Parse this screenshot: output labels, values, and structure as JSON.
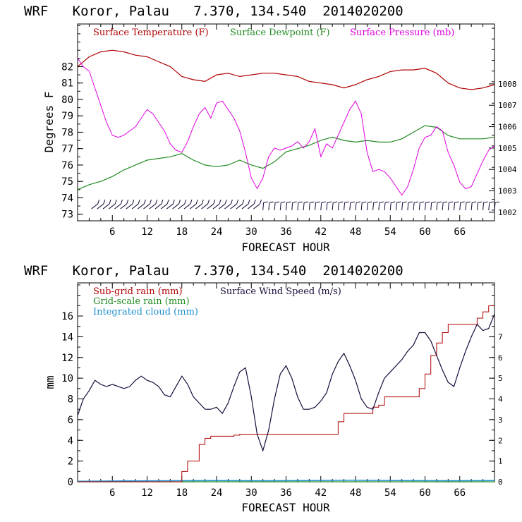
{
  "chart_data": [
    {
      "type": "line",
      "title": "WRF   Koror, Palau   7.370, 134.540  2014020200",
      "xlabel": "FORECAST HOUR",
      "ylabel": "Degrees F",
      "xlim": [
        0,
        72
      ],
      "ylim": [
        72.6,
        84.6
      ],
      "y2lim": [
        1001.6,
        1010.8
      ],
      "x_ticks": [
        6,
        12,
        18,
        24,
        30,
        36,
        42,
        48,
        54,
        60,
        66
      ],
      "y_ticks": [
        73,
        74,
        75,
        76,
        77,
        78,
        79,
        80,
        81,
        82
      ],
      "y2_ticks": [
        1002,
        1003,
        1004,
        1005,
        1006,
        1007,
        1008
      ],
      "colors": {
        "temperature": "#b00000",
        "dewpoint": "#228b22",
        "pressure": "#e000e0",
        "wind": "#1a0a3a"
      },
      "legend": [
        "Surface Temperature (F)",
        "Surface Dewpoint (F)",
        "Surface Pressure (mb)"
      ],
      "series": [
        {
          "name": "Surface Temperature (F)",
          "axis": "left",
          "x": [
            0,
            2,
            4,
            6,
            8,
            10,
            12,
            14,
            16,
            18,
            20,
            22,
            24,
            26,
            28,
            30,
            32,
            34,
            36,
            38,
            40,
            42,
            44,
            46,
            48,
            50,
            52,
            54,
            56,
            58,
            60,
            62,
            64,
            66,
            68,
            70,
            72
          ],
          "values": [
            82.0,
            82.6,
            82.9,
            83.0,
            82.9,
            82.7,
            82.6,
            82.3,
            82.0,
            81.4,
            81.2,
            81.1,
            81.5,
            81.6,
            81.4,
            81.5,
            81.6,
            81.6,
            81.5,
            81.4,
            81.1,
            81.0,
            80.9,
            80.7,
            80.9,
            81.2,
            81.4,
            81.7,
            81.8,
            81.8,
            81.9,
            81.6,
            81.0,
            80.7,
            80.6,
            80.7,
            80.9
          ]
        },
        {
          "name": "Surface Dewpoint (F)",
          "axis": "left",
          "x": [
            0,
            2,
            4,
            6,
            8,
            10,
            12,
            14,
            16,
            18,
            20,
            22,
            24,
            26,
            28,
            30,
            32,
            34,
            36,
            38,
            40,
            42,
            44,
            46,
            48,
            50,
            52,
            54,
            56,
            58,
            60,
            62,
            64,
            66,
            68,
            70,
            72
          ],
          "values": [
            74.5,
            74.8,
            75.0,
            75.3,
            75.7,
            76.0,
            76.3,
            76.4,
            76.5,
            76.7,
            76.3,
            76.0,
            75.9,
            76.0,
            76.3,
            76.0,
            75.8,
            76.2,
            76.8,
            77.0,
            77.2,
            77.5,
            77.7,
            77.5,
            77.4,
            77.5,
            77.4,
            77.4,
            77.6,
            78.0,
            78.4,
            78.3,
            77.8,
            77.6,
            77.6,
            77.6,
            77.7
          ]
        },
        {
          "name": "Surface Pressure (mb)",
          "axis": "right",
          "x": [
            0,
            1,
            2,
            3,
            4,
            5,
            6,
            7,
            8,
            9,
            10,
            11,
            12,
            13,
            14,
            15,
            16,
            17,
            18,
            19,
            20,
            21,
            22,
            23,
            24,
            25,
            26,
            27,
            28,
            29,
            30,
            31,
            32,
            33,
            34,
            35,
            36,
            37,
            38,
            39,
            40,
            41,
            42,
            43,
            44,
            45,
            46,
            47,
            48,
            49,
            50,
            51,
            52,
            53,
            54,
            55,
            56,
            57,
            58,
            59,
            60,
            61,
            62,
            63,
            64,
            65,
            66,
            67,
            68,
            69,
            70,
            71,
            72
          ],
          "values": [
            1009.2,
            1008.8,
            1008.6,
            1007.8,
            1007.0,
            1006.2,
            1005.6,
            1005.5,
            1005.6,
            1005.8,
            1006.0,
            1006.4,
            1006.8,
            1006.6,
            1006.2,
            1005.8,
            1005.2,
            1004.9,
            1004.8,
            1005.3,
            1006.0,
            1006.6,
            1006.9,
            1006.4,
            1007.1,
            1007.2,
            1006.8,
            1006.4,
            1005.8,
            1004.8,
            1003.6,
            1003.1,
            1003.6,
            1004.6,
            1005.0,
            1004.9,
            1005.0,
            1005.1,
            1005.3,
            1005.0,
            1005.3,
            1005.9,
            1004.6,
            1005.2,
            1005.0,
            1005.6,
            1006.2,
            1006.8,
            1007.2,
            1006.6,
            1004.8,
            1003.9,
            1004.0,
            1003.9,
            1003.6,
            1003.2,
            1002.8,
            1003.2,
            1004.0,
            1005.0,
            1005.5,
            1005.6,
            1006.0,
            1005.8,
            1004.8,
            1004.2,
            1003.4,
            1003.1,
            1003.2,
            1003.8,
            1004.4,
            1004.9,
            1005.1
          ]
        },
        {
          "name": "Wind barbs",
          "axis": "none",
          "x": [
            3,
            4,
            5,
            6,
            7,
            8,
            9,
            10,
            11,
            12,
            13,
            14,
            15,
            16,
            17,
            18,
            19,
            20,
            21,
            22,
            23,
            24,
            25,
            26,
            27,
            28,
            29,
            30,
            31,
            32,
            33,
            34,
            35,
            36,
            37,
            38,
            39,
            40,
            41,
            42,
            43,
            44,
            45,
            46,
            47,
            48,
            49,
            50,
            51,
            52,
            53,
            54,
            55,
            56,
            57,
            58,
            59,
            60,
            61,
            62,
            63,
            64,
            65,
            66,
            67,
            68,
            69,
            70,
            71,
            72
          ],
          "values": [
            73.5,
            73.5,
            73.5,
            73.5,
            73.5,
            73.5,
            73.5,
            73.5,
            73.5,
            73.5,
            73.5,
            73.5,
            73.5,
            73.5,
            73.5,
            73.5,
            73.5,
            73.5,
            73.5,
            73.5,
            73.5,
            73.5,
            73.5,
            73.5,
            73.5,
            73.5,
            73.5,
            73.5,
            73.5,
            73.5,
            73.5,
            73.5,
            73.5,
            73.5,
            73.5,
            73.5,
            73.5,
            73.5,
            73.5,
            73.5,
            73.5,
            73.5,
            73.5,
            73.5,
            73.5,
            73.5,
            73.5,
            73.5,
            73.5,
            73.5,
            73.5,
            73.5,
            73.5,
            73.5,
            73.5,
            73.5,
            73.5,
            73.5,
            73.5,
            73.5,
            73.5,
            73.5,
            73.5,
            73.5,
            73.5,
            73.5,
            73.5,
            73.5,
            73.5,
            73.5
          ]
        }
      ]
    },
    {
      "type": "line",
      "title": "WRF   Koror, Palau   7.370, 134.540  2014020200",
      "xlabel": "FORECAST HOUR",
      "ylabel": "mm",
      "xlim": [
        0,
        72
      ],
      "ylim": [
        0,
        19.2
      ],
      "y2lim": [
        0,
        9.6
      ],
      "x_ticks": [
        6,
        12,
        18,
        24,
        30,
        36,
        42,
        48,
        54,
        60,
        66
      ],
      "y_ticks": [
        0,
        2,
        4,
        6,
        8,
        10,
        12,
        14,
        16
      ],
      "y2_ticks": [
        0,
        1,
        2,
        3,
        4,
        5,
        6,
        7
      ],
      "colors": {
        "subgrid": "#b00000",
        "gridscale": "#228b22",
        "cloud": "#1f8fd0",
        "wind": "#1a0a3a"
      },
      "legend": [
        "Sub-grid rain (mm)",
        "Surface Wind Speed (m/s)",
        "Grid-scale rain (mm)",
        "Integrated cloud (mm)"
      ],
      "series": [
        {
          "name": "Sub-grid rain (mm)",
          "axis": "left",
          "x": [
            0,
            17,
            18,
            19,
            20,
            21,
            22,
            23,
            24,
            25,
            26,
            27,
            28,
            29,
            30,
            31,
            32,
            44,
            45,
            46,
            47,
            48,
            49,
            50,
            51,
            52,
            53,
            54,
            58,
            59,
            60,
            61,
            62,
            63,
            64,
            68,
            69,
            70,
            71,
            72
          ],
          "values": [
            0,
            0,
            1.0,
            2.0,
            2.0,
            3.6,
            4.2,
            4.4,
            4.4,
            4.4,
            4.4,
            4.5,
            4.6,
            4.6,
            4.6,
            4.6,
            4.6,
            4.6,
            5.8,
            6.6,
            6.6,
            6.6,
            6.6,
            6.6,
            7.2,
            7.4,
            8.2,
            8.2,
            8.2,
            9.0,
            10.4,
            12.2,
            13.4,
            14.4,
            15.2,
            15.2,
            15.8,
            16.4,
            17.0,
            17.0
          ]
        },
        {
          "name": "Grid-scale rain (mm)",
          "axis": "left",
          "x": [
            0,
            72
          ],
          "values": [
            0,
            0
          ]
        },
        {
          "name": "Integrated cloud (mm)",
          "axis": "left",
          "x": [
            0,
            8,
            16,
            24,
            32,
            40,
            48,
            56,
            64,
            72
          ],
          "values": [
            0.05,
            0.08,
            0.1,
            0.12,
            0.1,
            0.12,
            0.15,
            0.12,
            0.1,
            0.12
          ]
        },
        {
          "name": "Surface Wind Speed (m/s)",
          "axis": "right",
          "x": [
            0,
            1,
            2,
            3,
            4,
            5,
            6,
            7,
            8,
            9,
            10,
            11,
            12,
            13,
            14,
            15,
            16,
            17,
            18,
            19,
            20,
            21,
            22,
            23,
            24,
            25,
            26,
            27,
            28,
            29,
            30,
            31,
            32,
            33,
            34,
            35,
            36,
            37,
            38,
            39,
            40,
            41,
            42,
            43,
            44,
            45,
            46,
            47,
            48,
            49,
            50,
            51,
            52,
            53,
            54,
            55,
            56,
            57,
            58,
            59,
            60,
            61,
            62,
            63,
            64,
            65,
            66,
            67,
            68,
            69,
            70,
            71,
            72
          ],
          "values": [
            3.2,
            4.0,
            4.4,
            4.9,
            4.7,
            4.6,
            4.7,
            4.6,
            4.5,
            4.6,
            4.9,
            5.1,
            4.9,
            4.8,
            4.6,
            4.2,
            4.1,
            4.6,
            5.1,
            4.7,
            4.1,
            3.8,
            3.5,
            3.5,
            3.6,
            3.3,
            3.8,
            4.6,
            5.3,
            5.5,
            4.1,
            2.3,
            1.5,
            2.5,
            4.0,
            5.2,
            5.6,
            5.0,
            4.1,
            3.5,
            3.5,
            3.6,
            3.9,
            4.3,
            5.2,
            5.8,
            6.2,
            5.6,
            4.9,
            4.0,
            3.6,
            3.5,
            4.3,
            5.0,
            5.3,
            5.6,
            5.9,
            6.3,
            6.6,
            7.2,
            7.2,
            6.8,
            6.1,
            5.4,
            4.8,
            4.6,
            5.5,
            6.3,
            7.0,
            7.6,
            7.3,
            7.4,
            8.1
          ]
        }
      ]
    }
  ]
}
